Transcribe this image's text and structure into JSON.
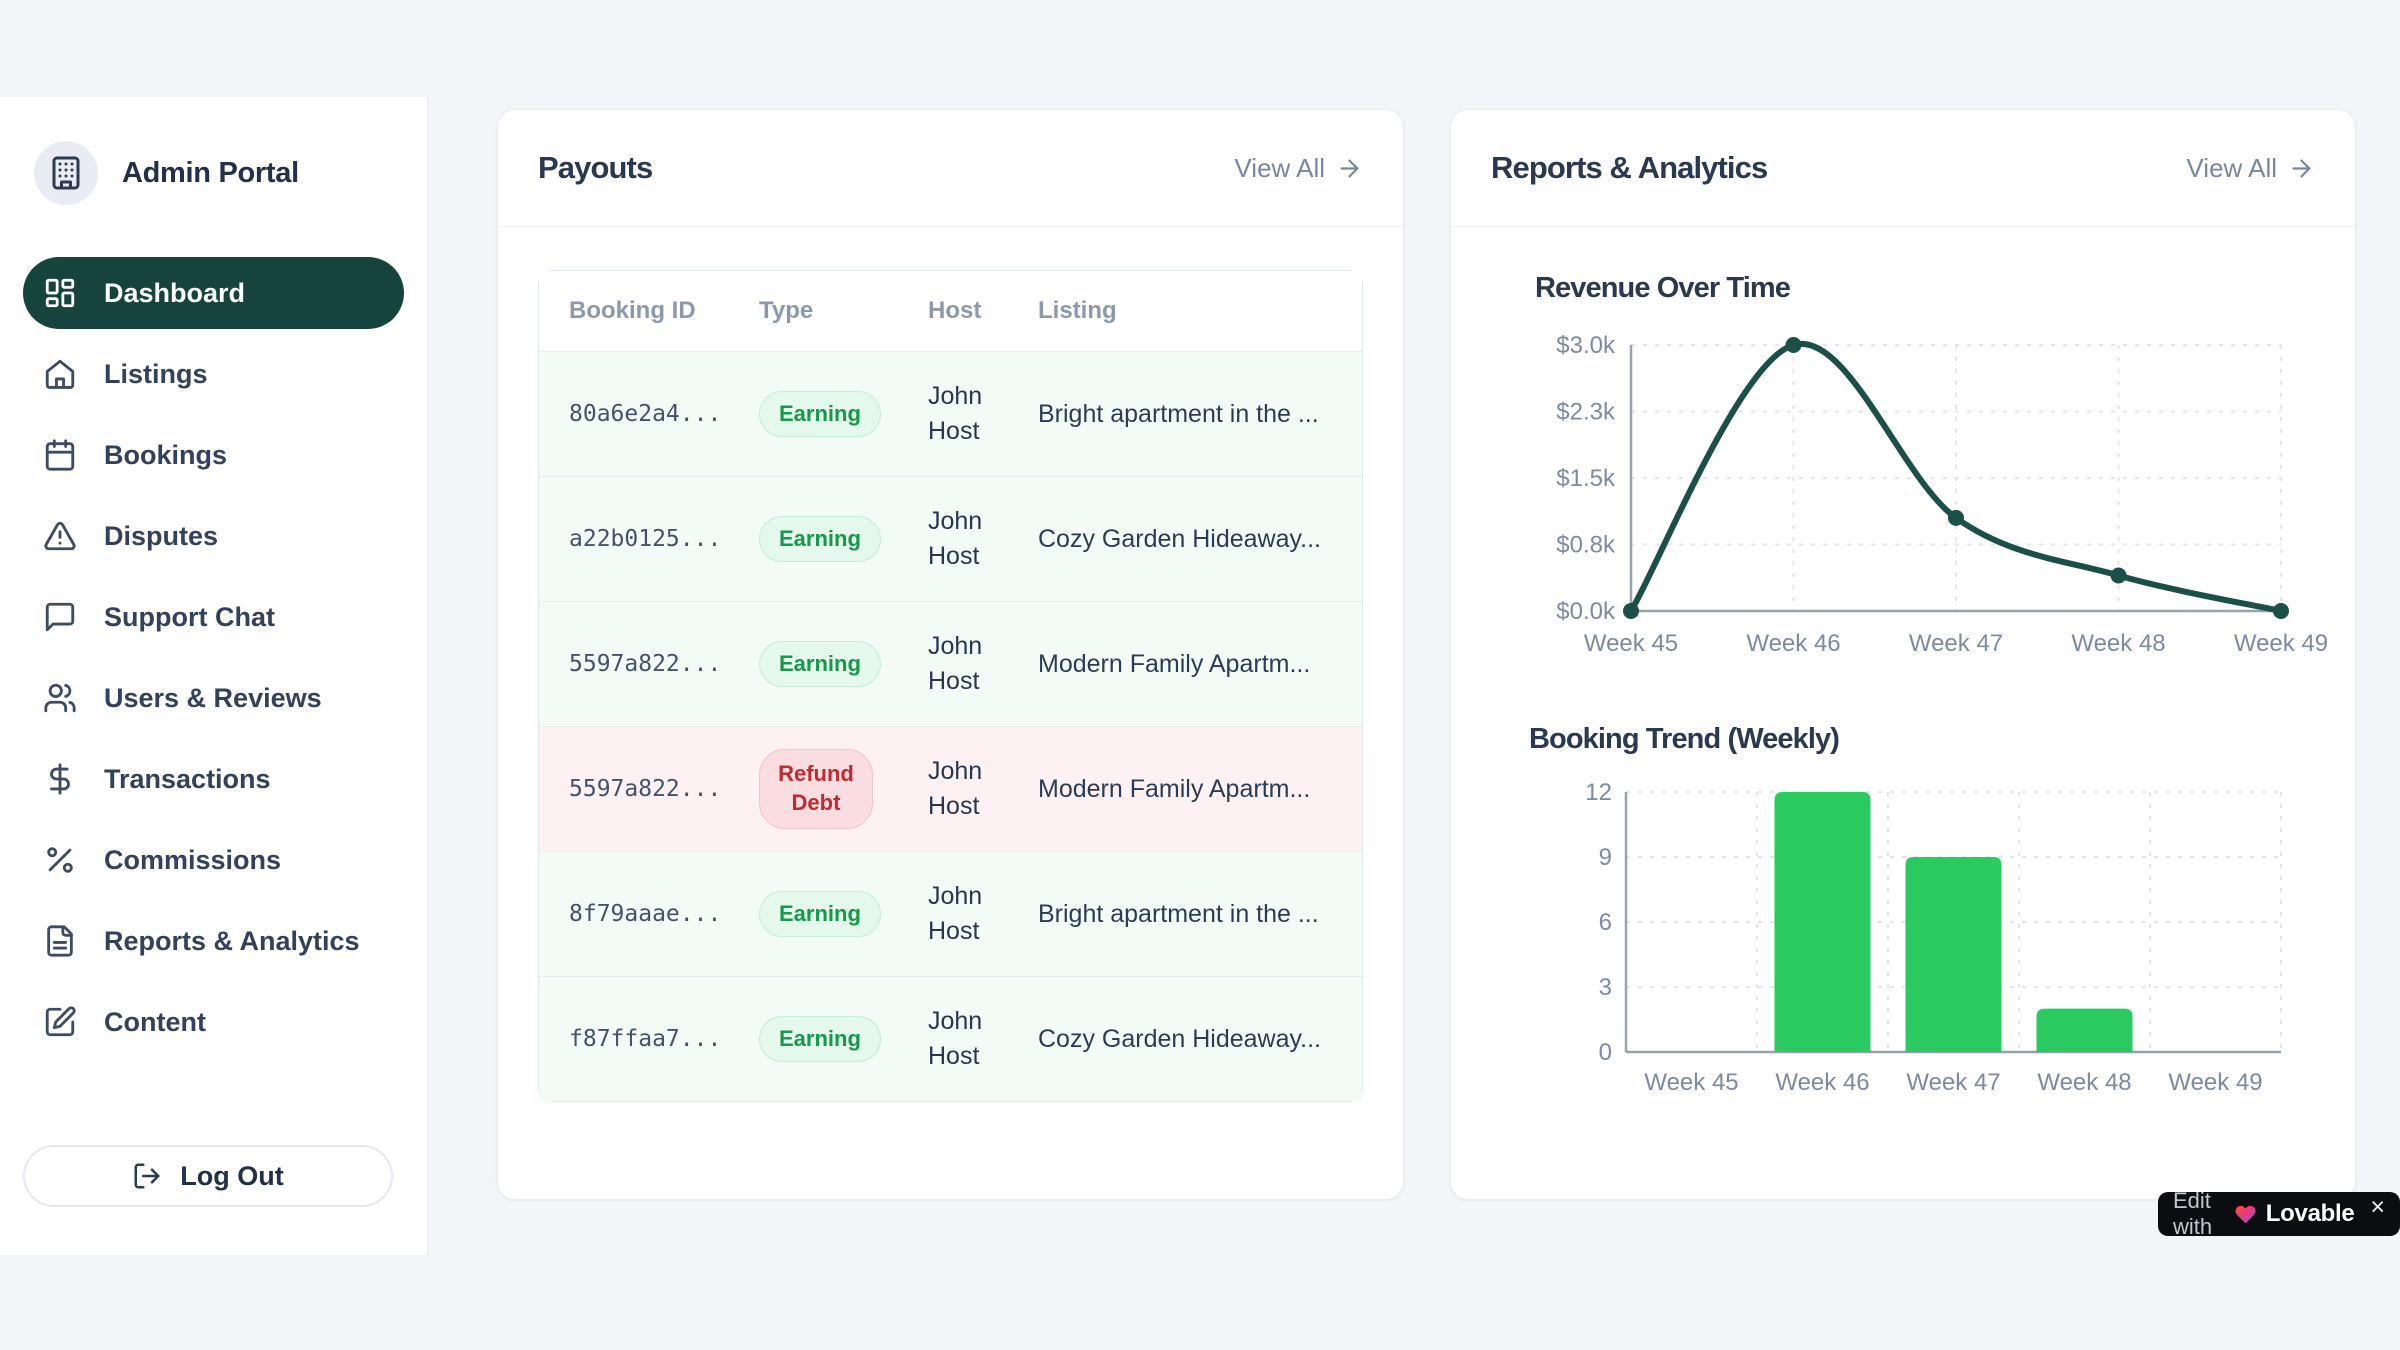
{
  "sidebar": {
    "title": "Admin Portal",
    "logo_icon": "building-icon",
    "items": [
      {
        "label": "Dashboard",
        "icon": "dashboard-icon",
        "active": true
      },
      {
        "label": "Listings",
        "icon": "home-icon",
        "active": false
      },
      {
        "label": "Bookings",
        "icon": "calendar-icon",
        "active": false
      },
      {
        "label": "Disputes",
        "icon": "alert-triangle-icon",
        "active": false
      },
      {
        "label": "Support Chat",
        "icon": "message-icon",
        "active": false
      },
      {
        "label": "Users & Reviews",
        "icon": "users-icon",
        "active": false
      },
      {
        "label": "Transactions",
        "icon": "dollar-icon",
        "active": false
      },
      {
        "label": "Commissions",
        "icon": "percent-icon",
        "active": false
      },
      {
        "label": "Reports & Analytics",
        "icon": "file-text-icon",
        "active": false
      },
      {
        "label": "Content",
        "icon": "file-pen-icon",
        "active": false
      }
    ],
    "logout": {
      "label": "Log Out",
      "icon": "logout-icon"
    }
  },
  "payouts": {
    "title": "Payouts",
    "view_all": "View All",
    "table": {
      "headers": [
        "Booking ID",
        "Type",
        "Host",
        "Listing"
      ],
      "rows": [
        {
          "booking_id": "80a6e2a4...",
          "type": "Earning",
          "host": "John Host",
          "listing": "Bright apartment in the ..."
        },
        {
          "booking_id": "a22b0125...",
          "type": "Earning",
          "host": "John Host",
          "listing": "Cozy Garden Hideaway..."
        },
        {
          "booking_id": "5597a822...",
          "type": "Earning",
          "host": "John Host",
          "listing": "Modern Family Apartm..."
        },
        {
          "booking_id": "5597a822...",
          "type": "Refund Debt",
          "host": "John Host",
          "listing": "Modern Family Apartm..."
        },
        {
          "booking_id": "8f79aaae...",
          "type": "Earning",
          "host": "John Host",
          "listing": "Bright apartment in the ..."
        },
        {
          "booking_id": "f87ffaa7...",
          "type": "Earning",
          "host": "John Host",
          "listing": "Cozy Garden Hideaway..."
        }
      ]
    }
  },
  "reports": {
    "title": "Reports & Analytics",
    "view_all": "View All"
  },
  "chart_data": [
    {
      "type": "line",
      "title": "Revenue Over Time",
      "x": [
        "Week 45",
        "Week 46",
        "Week 47",
        "Week 48",
        "Week 49"
      ],
      "values": [
        0,
        3000,
        1050,
        400,
        0
      ],
      "y_tick_labels": [
        "$0.0k",
        "$0.8k",
        "$1.5k",
        "$2.3k",
        "$3.0k"
      ],
      "y_tick_values": [
        0,
        750,
        1500,
        2250,
        3000
      ],
      "ylim": [
        0,
        3000
      ],
      "grid": true,
      "legend": "none",
      "line_color": "#1d4f49"
    },
    {
      "type": "bar",
      "title": "Booking Trend (Weekly)",
      "categories": [
        "Week 45",
        "Week 46",
        "Week 47",
        "Week 48",
        "Week 49"
      ],
      "values": [
        0,
        12,
        9,
        2,
        0
      ],
      "y_ticks": [
        0,
        3,
        6,
        9,
        12
      ],
      "ylim": [
        0,
        12
      ],
      "grid": true,
      "legend": "none",
      "bar_color": "#2bca60"
    }
  ],
  "lovable_badge": {
    "prefix": "Edit with",
    "brand": "Lovable",
    "close": "×"
  },
  "colors": {
    "page_bg": "#f3f5f8",
    "active_nav_bg": "#16433b",
    "earning_badge_bg": "#e4f8eb",
    "earning_badge_text": "#169a4a",
    "refund_badge_bg": "#fadde0",
    "refund_badge_text": "#bf2b31",
    "earning_row_bg": "#f3fbf6",
    "refund_row_bg": "#fdf1f3",
    "line_color": "#1d4f49",
    "bar_color": "#2bca60"
  }
}
